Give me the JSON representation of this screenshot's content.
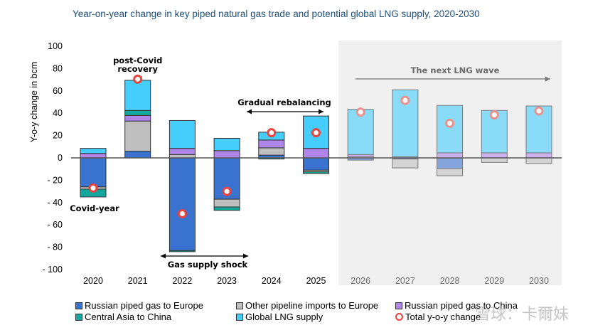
{
  "chart_data": {
    "type": "bar",
    "stacked": true,
    "title": "Year-on-year change in key piped natural gas trade and potential global LNG supply, 2020-2030",
    "xlabel": "",
    "ylabel": "Y-o-y change in bcm",
    "ylim": [
      -100,
      100
    ],
    "yticks": [
      100,
      80,
      60,
      40,
      20,
      0,
      -20,
      -40,
      -60,
      -80,
      -100
    ],
    "ytick_labels": [
      "100",
      "80",
      "60",
      "40",
      "20",
      "0",
      "- 20",
      "- 40",
      "- 60",
      "- 80",
      "- 100"
    ],
    "categories": [
      "2020",
      "2021",
      "2022",
      "2023",
      "2024",
      "2025",
      "2026",
      "2027",
      "2028",
      "2029",
      "2030"
    ],
    "projected_from": "2026",
    "series": [
      {
        "name": "Russian piped gas to Europe",
        "color": "#3a72d0",
        "values": [
          -26,
          6,
          -83,
          -37,
          2.5,
          -11,
          -2,
          -1,
          -9.5,
          0,
          0
        ]
      },
      {
        "name": "Other pipeline imports to Europe",
        "color": "#bfbfbf",
        "values": [
          -2,
          27,
          3,
          -7,
          6.5,
          -1.5,
          1,
          -8,
          -6.5,
          -4,
          -5
        ]
      },
      {
        "name": "Russian piped gas to China",
        "color": "#b085ea",
        "values": [
          4,
          5,
          5.5,
          6.5,
          7,
          8.5,
          2,
          1,
          4.5,
          4.5,
          4.5
        ]
      },
      {
        "name": "Central Asia to China",
        "color": "#13a89e",
        "values": [
          -7,
          4.5,
          -1,
          -3,
          -1,
          -1.5,
          0,
          0,
          0,
          0,
          0
        ]
      },
      {
        "name": "Global LNG supply",
        "color": "#45cdfb",
        "values": [
          4.5,
          27,
          25,
          11,
          7,
          29,
          40.5,
          60,
          42.5,
          38,
          42
        ]
      }
    ],
    "total": {
      "name": "Total y-o-y change",
      "color": "#e8433f",
      "values": [
        -27,
        70.5,
        -50,
        -30,
        22.5,
        22.5,
        41,
        51.5,
        31,
        38.5,
        42
      ]
    },
    "annotations": [
      {
        "text": "post-Covid",
        "category": "2021"
      },
      {
        "text": "recovery",
        "category": "2021"
      },
      {
        "text": "Covid-year",
        "category": "2020"
      },
      {
        "text": "Gas supply shock",
        "span": [
          "2022",
          "2023"
        ]
      },
      {
        "text": "Gradual rebalancing",
        "span": [
          "2024",
          "2025"
        ]
      },
      {
        "text": "The next LNG wave",
        "span": [
          "2026",
          "2030"
        ]
      }
    ],
    "grid": false,
    "legend_position": "bottom"
  },
  "watermark": "雪球：卡爾妹"
}
